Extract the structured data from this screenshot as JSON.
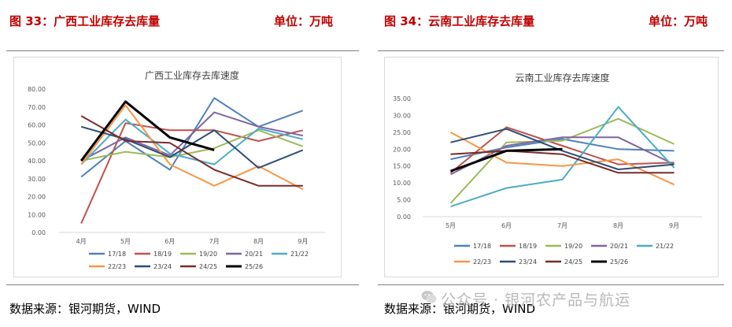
{
  "figures": [
    {
      "title": "图 33：广西工业库存去库量",
      "unit": "单位：万吨",
      "source": "数据来源：银河期货，WIND"
    },
    {
      "title": "图 34：云南工业库存去库量",
      "unit": "单位：万吨",
      "source": "数据来源：银河期货，WIND"
    }
  ],
  "watermark": "公众号 · 银河农产品与航运",
  "chart_data": [
    {
      "type": "line",
      "title": "广西工业库存去库速度",
      "categories": [
        "4月",
        "5月",
        "6月",
        "7月",
        "8月",
        "9月"
      ],
      "ylim": [
        0,
        80
      ],
      "yticks": [
        "0.00",
        "10.00",
        "20.00",
        "30.00",
        "40.00",
        "50.00",
        "60.00",
        "70.00",
        "80.00"
      ],
      "grid": false,
      "legend_position": "bottom",
      "series": [
        {
          "name": "17/18",
          "color": "#4e81bd",
          "values": [
            31,
            51,
            35,
            75,
            59,
            68
          ]
        },
        {
          "name": "18/19",
          "color": "#c0504d",
          "values": [
            5,
            61,
            57,
            57,
            51,
            57
          ]
        },
        {
          "name": "19/20",
          "color": "#9bbb59",
          "values": [
            40,
            45,
            42,
            47,
            57,
            48
          ]
        },
        {
          "name": "20/21",
          "color": "#8064a2",
          "values": [
            40,
            53,
            43,
            67,
            59,
            54
          ]
        },
        {
          "name": "21/22",
          "color": "#4bacc6",
          "values": [
            38,
            63,
            44,
            38,
            58,
            52
          ]
        },
        {
          "name": "22/23",
          "color": "#f79646",
          "values": [
            38,
            71,
            38,
            26,
            37,
            24
          ]
        },
        {
          "name": "23/24",
          "color": "#2c4d75",
          "values": [
            59,
            52,
            42,
            57,
            36,
            46
          ]
        },
        {
          "name": "24/25",
          "color": "#772c2a",
          "values": [
            65,
            51,
            50,
            35,
            26,
            26
          ]
        },
        {
          "name": "25/26",
          "color": "#000000",
          "values": [
            40,
            73,
            53,
            46,
            null,
            null
          ],
          "bold": true
        }
      ]
    },
    {
      "type": "line",
      "title": "云南工业库存去库速度",
      "categories": [
        "5月",
        "6月",
        "7月",
        "8月",
        "9月"
      ],
      "ylim": [
        0,
        35
      ],
      "yticks": [
        "0.00",
        "5.00",
        "10.00",
        "15.00",
        "20.00",
        "25.00",
        "30.00",
        "35.00"
      ],
      "grid": false,
      "legend_position": "bottom",
      "series": [
        {
          "name": "17/18",
          "color": "#4e81bd",
          "values": [
            17,
            20.5,
            23,
            20,
            19.5
          ]
        },
        {
          "name": "18/19",
          "color": "#c0504d",
          "values": [
            13,
            26.5,
            21,
            15.5,
            16
          ]
        },
        {
          "name": "19/20",
          "color": "#9bbb59",
          "values": [
            4,
            22,
            22.5,
            29,
            21.5
          ]
        },
        {
          "name": "20/21",
          "color": "#8064a2",
          "values": [
            12.5,
            21,
            23.5,
            23.5,
            15.5
          ]
        },
        {
          "name": "21/22",
          "color": "#4bacc6",
          "values": [
            3,
            8.5,
            11,
            32.5,
            14.5
          ]
        },
        {
          "name": "22/23",
          "color": "#f79646",
          "values": [
            25,
            16,
            15,
            17,
            9.5
          ]
        },
        {
          "name": "23/24",
          "color": "#2c4d75",
          "values": [
            22,
            26,
            19.5,
            14,
            15.5
          ]
        },
        {
          "name": "24/25",
          "color": "#772c2a",
          "values": [
            18.5,
            19.5,
            18.5,
            13,
            13
          ]
        },
        {
          "name": "25/26",
          "color": "#000000",
          "values": [
            13.5,
            19.5,
            20,
            null,
            null
          ],
          "bold": true
        }
      ]
    }
  ]
}
